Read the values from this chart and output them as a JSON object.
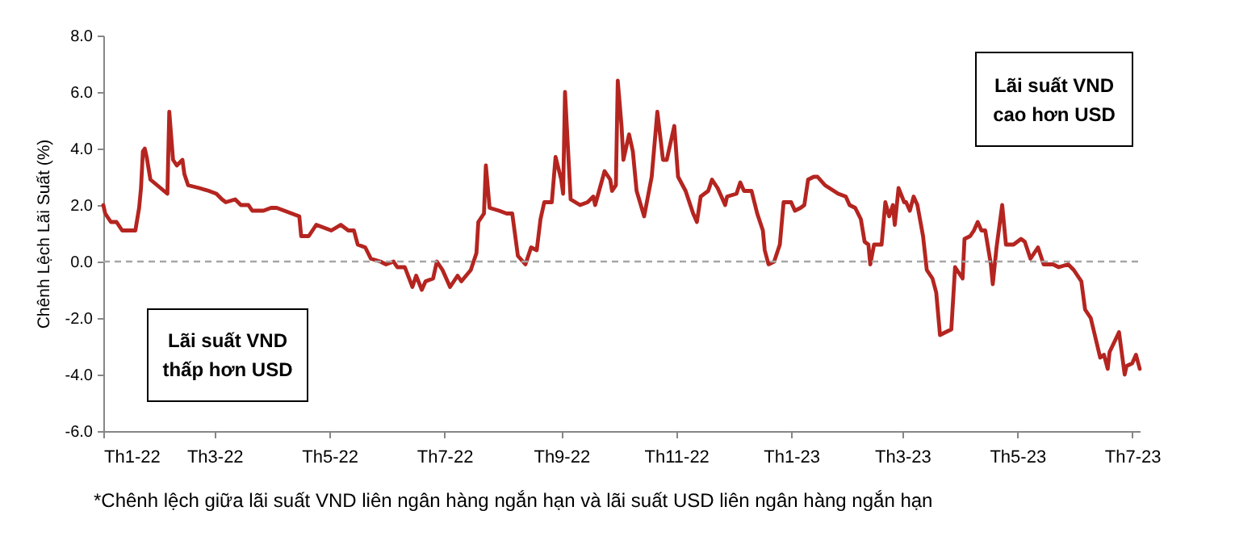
{
  "chart_data": {
    "type": "line",
    "ylabel": "Chênh Lệch Lãi Suất (%)",
    "annotations": [
      "Lãi suất VND thấp hơn USD",
      "Lãi suất VND cao hơn USD",
      "*Chênh lệch giữa lãi suất VND liên ngân hàng ngắn hạn và lãi suất USD liên ngân hàng ngắn hạn"
    ],
    "x": [
      "2022-01-01",
      "2022-01-02",
      "2022-01-05",
      "2022-01-08",
      "2022-01-11",
      "2022-01-16",
      "2022-01-18",
      "2022-01-20",
      "2022-01-21",
      "2022-01-22",
      "2022-01-23",
      "2022-01-24",
      "2022-01-26",
      "2022-02-04",
      "2022-02-05",
      "2022-02-07",
      "2022-02-09",
      "2022-02-12",
      "2022-02-13",
      "2022-02-15",
      "2022-02-21",
      "2022-02-26",
      "2022-03-02",
      "2022-03-05",
      "2022-03-07",
      "2022-03-12",
      "2022-03-15",
      "2022-03-19",
      "2022-03-21",
      "2022-03-27",
      "2022-03-31",
      "2022-04-03",
      "2022-04-11",
      "2022-04-15",
      "2022-04-16",
      "2022-04-20",
      "2022-04-24",
      "2022-04-28",
      "2022-05-02",
      "2022-05-07",
      "2022-05-11",
      "2022-05-14",
      "2022-05-16",
      "2022-05-20",
      "2022-05-23",
      "2022-05-28",
      "2022-05-31",
      "2022-06-04",
      "2022-06-06",
      "2022-06-10",
      "2022-06-14",
      "2022-06-16",
      "2022-06-19",
      "2022-06-21",
      "2022-06-25",
      "2022-06-27",
      "2022-06-30",
      "2022-07-04",
      "2022-07-08",
      "2022-07-10",
      "2022-07-15",
      "2022-07-18",
      "2022-07-19",
      "2022-07-22",
      "2022-07-23",
      "2022-07-25",
      "2022-07-30",
      "2022-08-03",
      "2022-08-06",
      "2022-08-09",
      "2022-08-13",
      "2022-08-16",
      "2022-08-19",
      "2022-08-21",
      "2022-08-23",
      "2022-08-27",
      "2022-08-29",
      "2022-09-01",
      "2022-09-02",
      "2022-09-03",
      "2022-09-06",
      "2022-09-11",
      "2022-09-15",
      "2022-09-18",
      "2022-09-19",
      "2022-09-24",
      "2022-09-27",
      "2022-09-28",
      "2022-09-30",
      "2022-10-01",
      "2022-10-03",
      "2022-10-04",
      "2022-10-07",
      "2022-10-09",
      "2022-10-11",
      "2022-10-15",
      "2022-10-19",
      "2022-10-22",
      "2022-10-25",
      "2022-10-27",
      "2022-10-31",
      "2022-11-02",
      "2022-11-06",
      "2022-11-10",
      "2022-11-12",
      "2022-11-14",
      "2022-11-18",
      "2022-11-20",
      "2022-11-23",
      "2022-11-27",
      "2022-11-28",
      "2022-12-03",
      "2022-12-05",
      "2022-12-07",
      "2022-12-11",
      "2022-12-14",
      "2022-12-17",
      "2022-12-18",
      "2022-12-20",
      "2022-12-23",
      "2022-12-26",
      "2022-12-28",
      "2023-01-01",
      "2023-01-03",
      "2023-01-06",
      "2023-01-08",
      "2023-01-10",
      "2023-01-13",
      "2023-01-15",
      "2023-01-19",
      "2023-01-26",
      "2023-01-30",
      "2023-02-01",
      "2023-02-04",
      "2023-02-07",
      "2023-02-09",
      "2023-02-11",
      "2023-02-12",
      "2023-02-14",
      "2023-02-18",
      "2023-02-20",
      "2023-02-22",
      "2023-02-24",
      "2023-02-25",
      "2023-02-27",
      "2023-03-02",
      "2023-03-03",
      "2023-03-05",
      "2023-03-07",
      "2023-03-09",
      "2023-03-12",
      "2023-03-14",
      "2023-03-17",
      "2023-03-19",
      "2023-03-21",
      "2023-03-27",
      "2023-03-29",
      "2023-04-02",
      "2023-04-03",
      "2023-04-06",
      "2023-04-08",
      "2023-04-10",
      "2023-04-12",
      "2023-04-14",
      "2023-04-17",
      "2023-04-18",
      "2023-04-20",
      "2023-04-23",
      "2023-04-25",
      "2023-04-29",
      "2023-05-03",
      "2023-05-05",
      "2023-05-08",
      "2023-05-10",
      "2023-05-12",
      "2023-05-15",
      "2023-05-20",
      "2023-05-23",
      "2023-05-28",
      "2023-05-31",
      "2023-06-04",
      "2023-06-06",
      "2023-06-09",
      "2023-06-14",
      "2023-06-16",
      "2023-06-18",
      "2023-06-19",
      "2023-06-24",
      "2023-06-27",
      "2023-06-28",
      "2023-07-01",
      "2023-07-03",
      "2023-07-05"
    ],
    "series": [
      {
        "color": "#b52520",
        "values": [
          2.0,
          1.7,
          1.4,
          1.4,
          1.1,
          1.1,
          1.1,
          1.9,
          2.6,
          3.9,
          4.0,
          3.7,
          2.9,
          2.4,
          5.3,
          3.6,
          3.4,
          3.6,
          3.1,
          2.7,
          2.6,
          2.5,
          2.4,
          2.2,
          2.1,
          2.2,
          2.0,
          2.0,
          1.8,
          1.8,
          1.9,
          1.9,
          1.7,
          1.6,
          0.9,
          0.9,
          1.3,
          1.2,
          1.1,
          1.3,
          1.1,
          1.1,
          0.6,
          0.5,
          0.1,
          0.0,
          -0.1,
          0.0,
          -0.2,
          -0.2,
          -0.9,
          -0.5,
          -1.0,
          -0.7,
          -0.6,
          0.0,
          -0.3,
          -0.9,
          -0.5,
          -0.7,
          -0.3,
          0.3,
          1.4,
          1.7,
          3.4,
          1.9,
          1.8,
          1.7,
          1.7,
          0.2,
          -0.1,
          0.5,
          0.4,
          1.5,
          2.1,
          2.1,
          3.7,
          2.9,
          2.4,
          6.0,
          2.2,
          2.0,
          2.1,
          2.3,
          2.0,
          3.2,
          2.9,
          2.5,
          2.7,
          6.4,
          4.8,
          3.6,
          4.5,
          3.9,
          2.5,
          1.6,
          3.0,
          5.3,
          3.6,
          3.6,
          4.8,
          3.0,
          2.5,
          1.7,
          1.4,
          2.3,
          2.5,
          2.9,
          2.6,
          2.0,
          2.3,
          2.4,
          2.8,
          2.5,
          2.5,
          1.7,
          1.1,
          0.4,
          -0.1,
          0.0,
          0.6,
          2.1,
          2.1,
          1.8,
          1.9,
          2.0,
          2.9,
          3.0,
          3.0,
          2.7,
          2.4,
          2.3,
          2.0,
          1.9,
          1.5,
          0.7,
          0.6,
          -0.1,
          0.6,
          0.6,
          2.1,
          1.6,
          2.0,
          1.3,
          2.6,
          2.1,
          2.1,
          1.8,
          2.3,
          2.0,
          0.9,
          -0.3,
          -0.6,
          -1.1,
          -2.6,
          -2.4,
          -0.2,
          -0.6,
          0.8,
          0.9,
          1.1,
          1.4,
          1.1,
          1.1,
          -0.1,
          -0.8,
          0.5,
          2.0,
          0.6,
          0.6,
          0.8,
          0.7,
          0.1,
          0.3,
          0.5,
          -0.1,
          -0.1,
          -0.2,
          -0.1,
          -0.3,
          -0.7,
          -1.7,
          -2.0,
          -3.4,
          -3.3,
          -3.8,
          -3.2,
          -2.5,
          -4.0,
          -3.7,
          -3.6,
          -3.3,
          -3.8
        ]
      }
    ],
    "xlim": [
      "2022-01-01",
      "2023-07-05"
    ],
    "xticks": [
      {
        "value": "2022-01-01",
        "label": "Th1-22"
      },
      {
        "value": "2022-03-01",
        "label": "Th3-22"
      },
      {
        "value": "2022-05-01",
        "label": "Th5-22"
      },
      {
        "value": "2022-07-01",
        "label": "Th7-22"
      },
      {
        "value": "2022-09-01",
        "label": "Th9-22"
      },
      {
        "value": "2022-11-01",
        "label": "Th11-22"
      },
      {
        "value": "2023-01-01",
        "label": "Th1-23"
      },
      {
        "value": "2023-03-01",
        "label": "Th3-23"
      },
      {
        "value": "2023-05-01",
        "label": "Th5-23"
      },
      {
        "value": "2023-07-01",
        "label": "Th7-23"
      }
    ],
    "ylim": [
      -6,
      8
    ],
    "yticks": [
      {
        "value": -6,
        "label": "-6.0"
      },
      {
        "value": -4,
        "label": "-4.0"
      },
      {
        "value": -2,
        "label": "-2.0"
      },
      {
        "value": 0,
        "label": "0.0"
      },
      {
        "value": 2,
        "label": "2.0"
      },
      {
        "value": 4,
        "label": "4.0"
      },
      {
        "value": 6,
        "label": "6.0"
      },
      {
        "value": 8,
        "label": "8.0"
      }
    ],
    "ref_lines": [
      {
        "axis": "y",
        "value": 0,
        "color": "#a6a6a6",
        "line_style": "dashed"
      }
    ],
    "grid": false,
    "marker": "none",
    "line_style": "solid"
  }
}
